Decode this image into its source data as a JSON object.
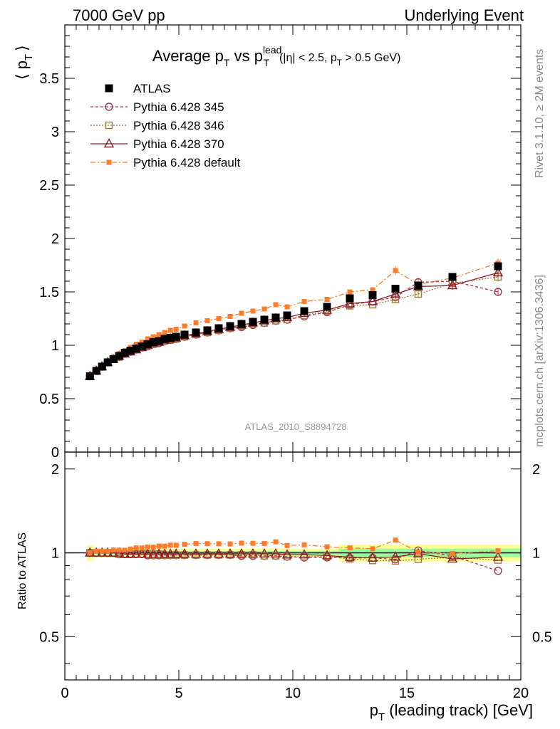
{
  "header": {
    "left": "7000 GeV pp",
    "right": "Underlying Event"
  },
  "title": {
    "main": "Average p",
    "sub_t": "T",
    "vs": " vs p",
    "sup_lead": "lead",
    "sub_t2": "T",
    "cuts_a": "(|η| < 2.5, p",
    "cuts_t": "T",
    "cuts_b": " > 0.5 GeV)"
  },
  "side_labels": {
    "rivet": "Rivet 3.1.10, ≥ 2M events",
    "mcplots": "mcplots.cern.ch [arXiv:1306.3436]"
  },
  "watermark": "ATLAS_2010_S8894728",
  "chart_data": {
    "type": "scatter",
    "xlabel_main": "p",
    "xlabel_sub": "T",
    "xlabel_rest": " (leading track) [GeV]",
    "ylabel_main": "⟨ p",
    "ylabel_sub": "T",
    "ylabel_end": "⟩",
    "ratio_ylabel": "Ratio to ATLAS",
    "xlim": [
      0,
      20
    ],
    "ylim": [
      0,
      4.0
    ],
    "ratio_ylim": [
      0.35,
      2.3
    ],
    "x_ticks": [
      "0",
      "5",
      "10",
      "15",
      "20"
    ],
    "y_ticks": [
      "0",
      "0.5",
      "1",
      "1.5",
      "2",
      "2.5",
      "3",
      "3.5"
    ],
    "ratio_ticks_left": [
      "0.5",
      "1",
      "2"
    ],
    "ratio_ticks_right": [
      "0.5",
      "1",
      "2"
    ],
    "x": [
      1.1,
      1.38,
      1.63,
      1.88,
      2.13,
      2.38,
      2.63,
      2.88,
      3.13,
      3.38,
      3.63,
      3.88,
      4.13,
      4.38,
      4.63,
      4.88,
      5.25,
      5.75,
      6.25,
      6.75,
      7.25,
      7.75,
      8.25,
      8.75,
      9.25,
      9.75,
      10.5,
      11.5,
      12.5,
      13.5,
      14.5,
      15.5,
      17.0,
      19.0
    ],
    "legend_position": "top-left",
    "series": [
      {
        "name": "ATLAS",
        "color": "#000000",
        "marker": "filled-square",
        "values": [
          0.71,
          0.76,
          0.8,
          0.84,
          0.87,
          0.9,
          0.93,
          0.95,
          0.97,
          0.99,
          1.01,
          1.03,
          1.04,
          1.06,
          1.07,
          1.08,
          1.1,
          1.12,
          1.14,
          1.16,
          1.18,
          1.2,
          1.22,
          1.24,
          1.26,
          1.28,
          1.32,
          1.36,
          1.44,
          1.47,
          1.53,
          1.56,
          1.64,
          1.74
        ]
      },
      {
        "name": "Pythia 6.428 345",
        "color": "#a8344c",
        "marker": "open-circle",
        "values": [
          0.71,
          0.76,
          0.8,
          0.84,
          0.87,
          0.89,
          0.92,
          0.94,
          0.96,
          0.98,
          0.99,
          1.01,
          1.02,
          1.04,
          1.05,
          1.06,
          1.08,
          1.1,
          1.12,
          1.14,
          1.16,
          1.17,
          1.19,
          1.21,
          1.23,
          1.24,
          1.27,
          1.31,
          1.38,
          1.41,
          1.45,
          1.59,
          1.6,
          1.5
        ]
      },
      {
        "name": "Pythia 6.428 346",
        "color": "#a07c3c",
        "marker": "open-square",
        "values": [
          0.71,
          0.76,
          0.8,
          0.84,
          0.87,
          0.89,
          0.92,
          0.94,
          0.96,
          0.98,
          1.0,
          1.01,
          1.03,
          1.04,
          1.05,
          1.06,
          1.08,
          1.1,
          1.12,
          1.14,
          1.16,
          1.18,
          1.2,
          1.21,
          1.23,
          1.24,
          1.28,
          1.32,
          1.37,
          1.38,
          1.43,
          1.48,
          1.58,
          1.64
        ]
      },
      {
        "name": "Pythia 6.428 370",
        "color": "#8c1c2c",
        "marker": "open-triangle",
        "values": [
          0.71,
          0.76,
          0.8,
          0.84,
          0.87,
          0.9,
          0.92,
          0.94,
          0.96,
          0.98,
          1.0,
          1.02,
          1.03,
          1.05,
          1.06,
          1.07,
          1.09,
          1.11,
          1.13,
          1.15,
          1.17,
          1.19,
          1.21,
          1.23,
          1.25,
          1.26,
          1.3,
          1.33,
          1.39,
          1.41,
          1.48,
          1.55,
          1.56,
          1.68
        ]
      },
      {
        "name": "Pythia 6.428 default",
        "color": "#ff7c2c",
        "marker": "small-filled-square",
        "values": [
          0.71,
          0.77,
          0.81,
          0.85,
          0.89,
          0.92,
          0.95,
          0.98,
          1.01,
          1.03,
          1.06,
          1.08,
          1.1,
          1.12,
          1.14,
          1.15,
          1.18,
          1.21,
          1.23,
          1.25,
          1.27,
          1.3,
          1.32,
          1.34,
          1.38,
          1.36,
          1.41,
          1.43,
          1.5,
          1.52,
          1.7,
          1.57,
          1.63,
          1.77
        ]
      }
    ]
  }
}
